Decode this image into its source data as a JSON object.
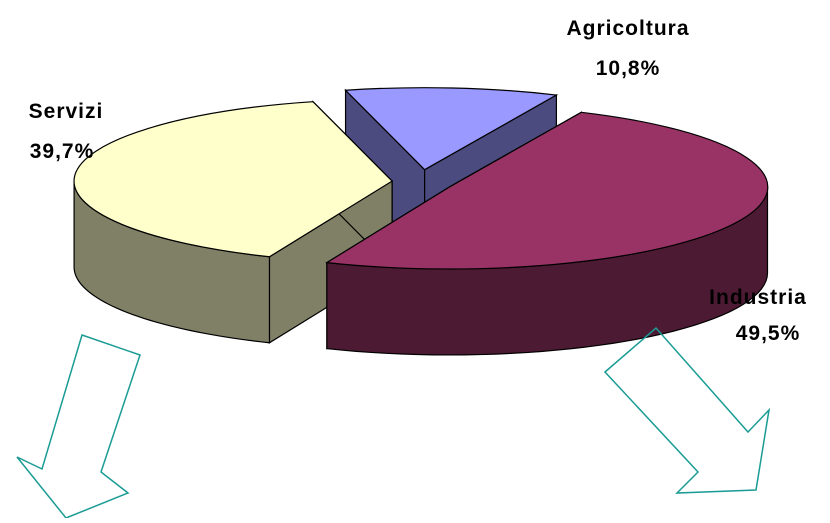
{
  "chart_data": {
    "type": "pie",
    "style": "3d-exploded",
    "slices": [
      {
        "category": "Agricoltura",
        "value": 10.8,
        "label": "10,8%",
        "color": "#9999ff",
        "side_color": "#4b4b80"
      },
      {
        "category": "Industria",
        "value": 49.5,
        "label": "49,5%",
        "color": "#993366",
        "side_color": "#4d1a33"
      },
      {
        "category": "Servizi",
        "value": 39.7,
        "label": "39,7%",
        "color": "#ffffcc",
        "side_color": "#808066"
      }
    ]
  },
  "decorations": {
    "arrow_color": "#1a9c94",
    "arrows": [
      "arrow-down-left",
      "arrow-down-right"
    ]
  }
}
